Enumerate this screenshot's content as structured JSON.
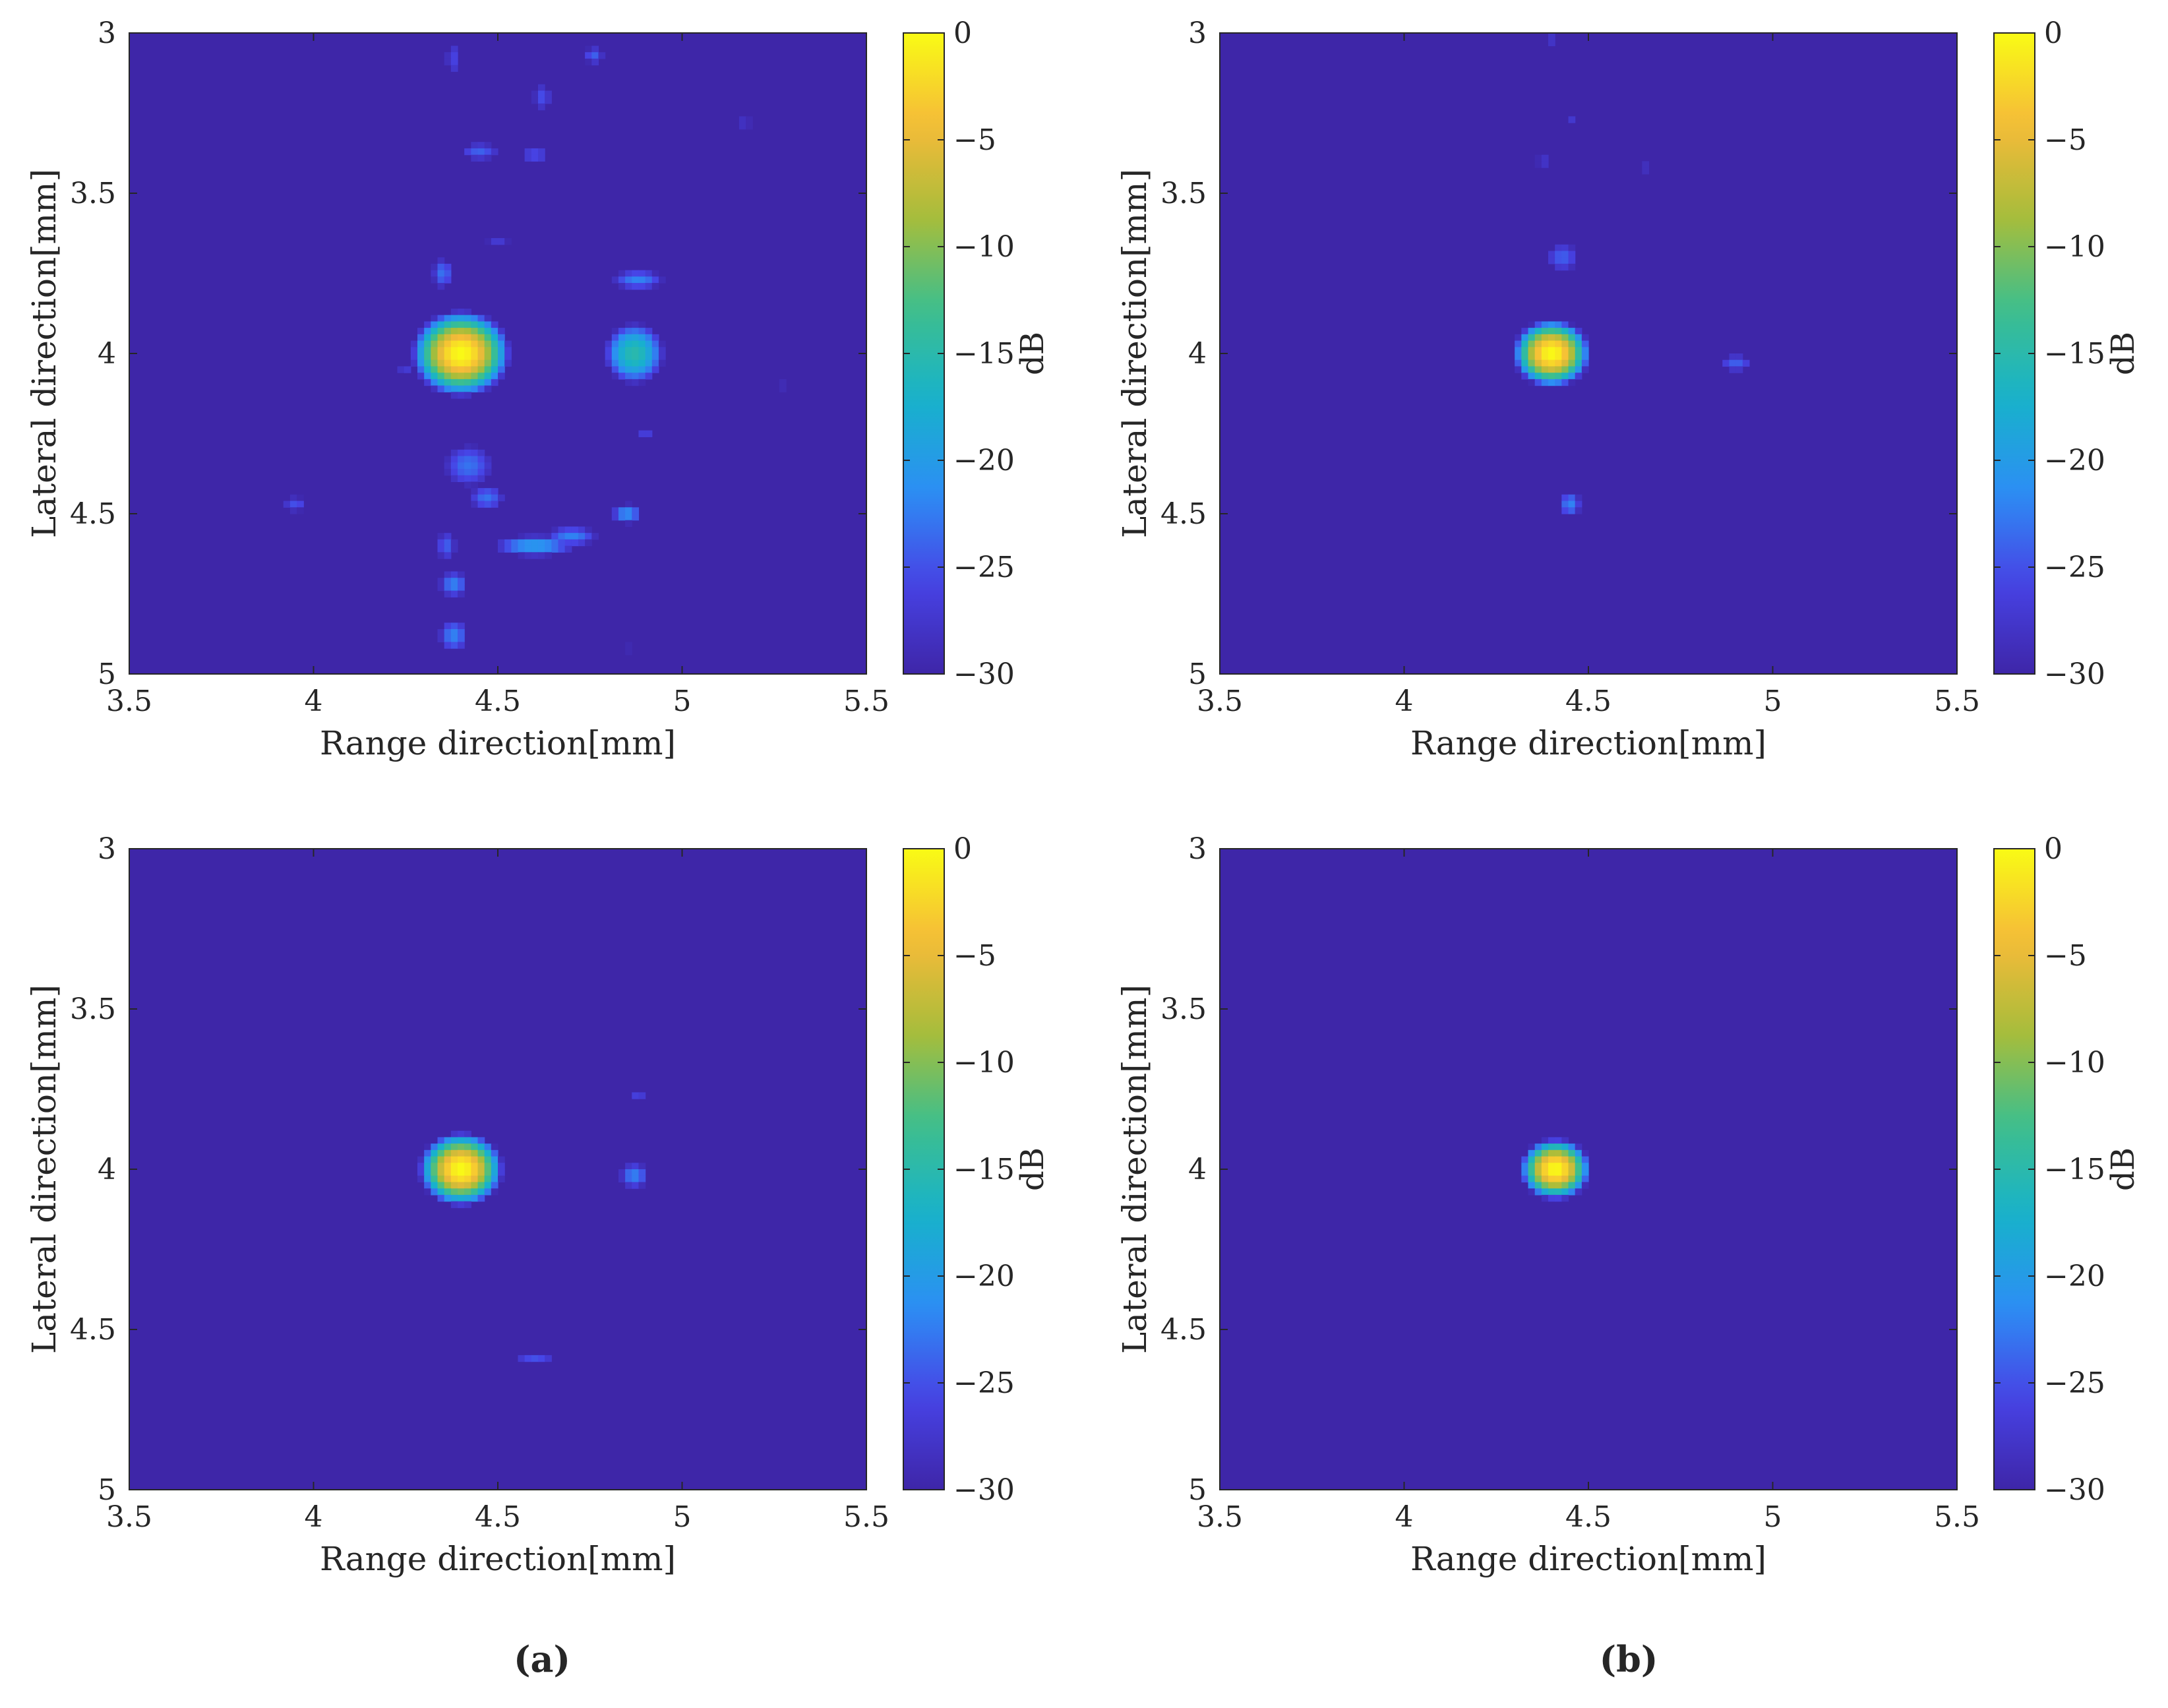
{
  "figure": {
    "captions": [
      "(a)",
      "(b)"
    ]
  },
  "colors": {
    "background": "#3b2fa6",
    "colormap": [
      "#3e26a8",
      "#4743e6",
      "#2c8ff4",
      "#17b2cb",
      "#3ebf8c",
      "#a8bd3a",
      "#f6ba39",
      "#f9fb15"
    ]
  },
  "chart_data": [
    {
      "type": "heatmap",
      "panel": "a-top",
      "xlabel": "Range direction[mm]",
      "ylabel": "Lateral direction[mm]",
      "colorbar_label": "dB",
      "xlim": [
        3.5,
        5.5
      ],
      "ylim": [
        3,
        5
      ],
      "y_reversed": true,
      "clim": [
        -30,
        0
      ],
      "xticks": [
        "3.5",
        "4",
        "4.5",
        "5",
        "5.5"
      ],
      "yticks": [
        "3",
        "3.5",
        "4",
        "4.5",
        "5"
      ],
      "colorbar_ticks": [
        "0",
        "−5",
        "−10",
        "−15",
        "−20",
        "−25",
        "−30"
      ],
      "blobs": [
        {
          "x": 4.4,
          "y": 4.0,
          "dB": 0,
          "sx": 0.07,
          "sy": 0.07
        },
        {
          "x": 4.87,
          "y": 4.0,
          "dB": -15,
          "sx": 0.06,
          "sy": 0.07
        },
        {
          "x": 4.88,
          "y": 3.77,
          "dB": -22,
          "sx": 0.07,
          "sy": 0.03
        },
        {
          "x": 4.35,
          "y": 3.75,
          "dB": -23,
          "sx": 0.03,
          "sy": 0.05
        },
        {
          "x": 4.45,
          "y": 3.37,
          "dB": -24,
          "sx": 0.06,
          "sy": 0.03
        },
        {
          "x": 4.6,
          "y": 3.38,
          "dB": -25,
          "sx": 0.05,
          "sy": 0.03
        },
        {
          "x": 4.38,
          "y": 3.08,
          "dB": -26,
          "sx": 0.03,
          "sy": 0.07
        },
        {
          "x": 4.62,
          "y": 3.2,
          "dB": -25,
          "sx": 0.03,
          "sy": 0.05
        },
        {
          "x": 4.76,
          "y": 3.07,
          "dB": -24,
          "sx": 0.03,
          "sy": 0.03
        },
        {
          "x": 5.17,
          "y": 3.28,
          "dB": -26,
          "sx": 0.03,
          "sy": 0.02
        },
        {
          "x": 4.5,
          "y": 3.65,
          "dB": -27,
          "sx": 0.05,
          "sy": 0.02
        },
        {
          "x": 4.42,
          "y": 4.35,
          "dB": -23,
          "sx": 0.07,
          "sy": 0.07
        },
        {
          "x": 4.47,
          "y": 4.45,
          "dB": -23,
          "sx": 0.05,
          "sy": 0.04
        },
        {
          "x": 4.6,
          "y": 4.6,
          "dB": -20,
          "sx": 0.1,
          "sy": 0.03
        },
        {
          "x": 4.7,
          "y": 4.57,
          "dB": -22,
          "sx": 0.07,
          "sy": 0.03
        },
        {
          "x": 4.85,
          "y": 4.5,
          "dB": -21,
          "sx": 0.04,
          "sy": 0.03
        },
        {
          "x": 4.38,
          "y": 4.72,
          "dB": -22,
          "sx": 0.04,
          "sy": 0.04
        },
        {
          "x": 4.38,
          "y": 4.88,
          "dB": -22,
          "sx": 0.04,
          "sy": 0.05
        },
        {
          "x": 3.95,
          "y": 4.47,
          "dB": -25,
          "sx": 0.04,
          "sy": 0.03
        },
        {
          "x": 4.9,
          "y": 4.25,
          "dB": -26,
          "sx": 0.03,
          "sy": 0.02
        },
        {
          "x": 5.27,
          "y": 4.1,
          "dB": -27,
          "sx": 0.02,
          "sy": 0.02
        },
        {
          "x": 4.25,
          "y": 4.05,
          "dB": -27,
          "sx": 0.04,
          "sy": 0.02
        },
        {
          "x": 4.36,
          "y": 4.6,
          "dB": -24,
          "sx": 0.03,
          "sy": 0.05
        },
        {
          "x": 4.85,
          "y": 4.92,
          "dB": -27,
          "sx": 0.02,
          "sy": 0.02
        }
      ]
    },
    {
      "type": "heatmap",
      "panel": "b-top",
      "xlabel": "Range direction[mm]",
      "ylabel": "Lateral direction[mm]",
      "colorbar_label": "dB",
      "xlim": [
        3.5,
        5.5
      ],
      "ylim": [
        3,
        5
      ],
      "y_reversed": true,
      "clim": [
        -30,
        0
      ],
      "xticks": [
        "3.5",
        "4",
        "4.5",
        "5",
        "5.5"
      ],
      "yticks": [
        "3",
        "3.5",
        "4",
        "4.5",
        "5"
      ],
      "colorbar_ticks": [
        "0",
        "−5",
        "−10",
        "−15",
        "−20",
        "−25",
        "−30"
      ],
      "blobs": [
        {
          "x": 4.4,
          "y": 4.0,
          "dB": 0,
          "sx": 0.055,
          "sy": 0.055
        },
        {
          "x": 4.9,
          "y": 4.03,
          "dB": -24,
          "sx": 0.05,
          "sy": 0.03
        },
        {
          "x": 4.43,
          "y": 3.7,
          "dB": -24,
          "sx": 0.05,
          "sy": 0.05
        },
        {
          "x": 4.45,
          "y": 4.47,
          "dB": -22,
          "sx": 0.03,
          "sy": 0.04
        },
        {
          "x": 4.38,
          "y": 3.4,
          "dB": -26,
          "sx": 0.04,
          "sy": 0.02
        },
        {
          "x": 4.66,
          "y": 3.42,
          "dB": -26,
          "sx": 0.02,
          "sy": 0.02
        },
        {
          "x": 4.4,
          "y": 3.02,
          "dB": -26,
          "sx": 0.03,
          "sy": 0.02
        },
        {
          "x": 4.45,
          "y": 3.27,
          "dB": -27,
          "sx": 0.02,
          "sy": 0.01
        },
        {
          "x": 4.97,
          "y": 4.52,
          "dB": -27,
          "sx": 0.02,
          "sy": 0.01
        },
        {
          "x": 4.37,
          "y": 4.3,
          "dB": -27,
          "sx": 0.03,
          "sy": 0.01
        }
      ]
    },
    {
      "type": "heatmap",
      "panel": "a-bottom",
      "xlabel": "Range direction[mm]",
      "ylabel": "Lateral direction[mm]",
      "colorbar_label": "dB",
      "xlim": [
        3.5,
        5.5
      ],
      "ylim": [
        3,
        5
      ],
      "y_reversed": true,
      "clim": [
        -30,
        0
      ],
      "xticks": [
        "3.5",
        "4",
        "4.5",
        "5",
        "5.5"
      ],
      "yticks": [
        "3",
        "3.5",
        "4",
        "4.5",
        "5"
      ],
      "colorbar_ticks": [
        "0",
        "−5",
        "−10",
        "−15",
        "−20",
        "−25",
        "−30"
      ],
      "blobs": [
        {
          "x": 4.4,
          "y": 4.0,
          "dB": 0,
          "sx": 0.06,
          "sy": 0.06
        },
        {
          "x": 4.87,
          "y": 4.02,
          "dB": -22,
          "sx": 0.04,
          "sy": 0.04
        },
        {
          "x": 4.88,
          "y": 3.77,
          "dB": -26,
          "sx": 0.03,
          "sy": 0.02
        },
        {
          "x": 4.6,
          "y": 4.59,
          "dB": -25,
          "sx": 0.07,
          "sy": 0.015
        },
        {
          "x": 4.5,
          "y": 4.62,
          "dB": -27,
          "sx": 0.02,
          "sy": 0.01
        }
      ]
    },
    {
      "type": "heatmap",
      "panel": "b-bottom",
      "xlabel": "Range direction[mm]",
      "ylabel": "Lateral direction[mm]",
      "colorbar_label": "dB",
      "xlim": [
        3.5,
        5.5
      ],
      "ylim": [
        3,
        5
      ],
      "y_reversed": true,
      "clim": [
        -30,
        0
      ],
      "xticks": [
        "3.5",
        "4",
        "4.5",
        "5",
        "5.5"
      ],
      "yticks": [
        "3",
        "3.5",
        "4",
        "4.5",
        "5"
      ],
      "colorbar_ticks": [
        "0",
        "−5",
        "−10",
        "−15",
        "−20",
        "−25",
        "−30"
      ],
      "blobs": [
        {
          "x": 4.41,
          "y": 4.0,
          "dB": 0,
          "sx": 0.05,
          "sy": 0.05
        }
      ]
    }
  ]
}
